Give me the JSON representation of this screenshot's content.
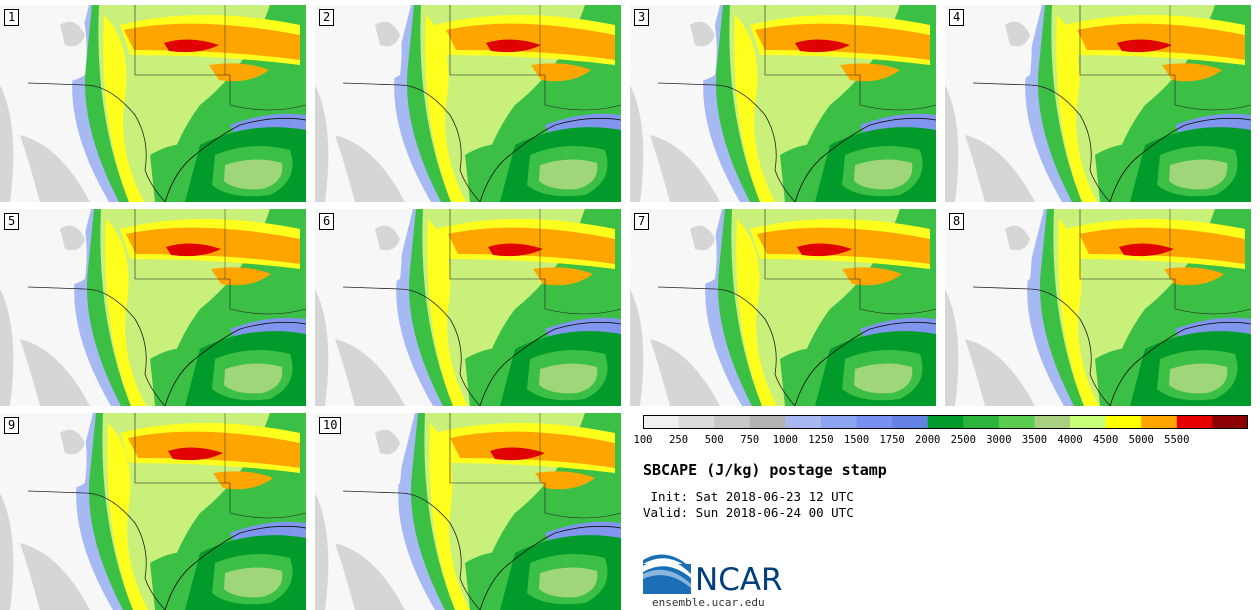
{
  "title": "SBCAPE (J/kg) postage stamp",
  "init_time": " Init: Sat 2018-06-23 12 UTC",
  "valid_time": "Valid: Sun 2018-06-24 00 UTC",
  "logo": {
    "name": "NCAR",
    "url": "ensemble.ucar.edu"
  },
  "panels": [
    {
      "label": "1"
    },
    {
      "label": "2"
    },
    {
      "label": "3"
    },
    {
      "label": "4"
    },
    {
      "label": "5"
    },
    {
      "label": "6"
    },
    {
      "label": "7"
    },
    {
      "label": "8"
    },
    {
      "label": "9"
    },
    {
      "label": "10"
    }
  ],
  "legend": {
    "tick_labels": [
      "100",
      "250",
      "500",
      "750",
      "1000",
      "1250",
      "1500",
      "1750",
      "2000",
      "2500",
      "3000",
      "3500",
      "4000",
      "4500",
      "5000",
      "5500"
    ],
    "colors": [
      "#f0f0f0",
      "#dcdcdc",
      "#c8c8c8",
      "#b4b4b4",
      "#a8b8f0",
      "#8ca5f0",
      "#7890f0",
      "#6482e6",
      "#009b2a",
      "#2db43c",
      "#5acd50",
      "#a8d080",
      "#c8ff78",
      "#ffff00",
      "#ffa500",
      "#e60000",
      "#8b0000"
    ]
  }
}
